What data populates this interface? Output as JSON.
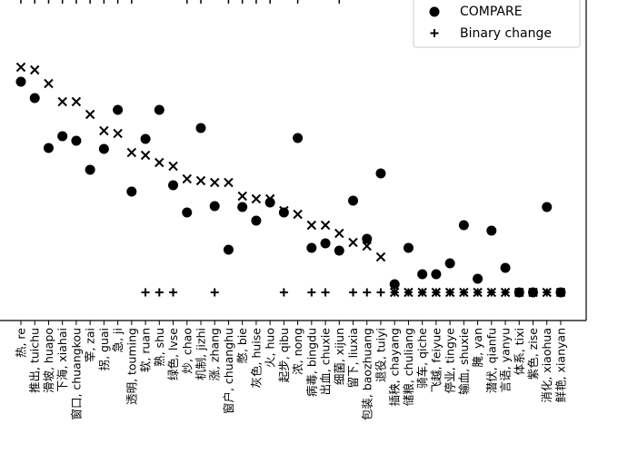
{
  "chart_data": {
    "type": "scatter",
    "title": "",
    "xlabel": "",
    "ylabel": "",
    "ylim": [
      0,
      2.6
    ],
    "grid": false,
    "legend": {
      "placement": "top-right",
      "entries": [
        {
          "label": "COMPARE",
          "marker": "dot"
        },
        {
          "label": "Binary change",
          "marker": "plus"
        }
      ]
    },
    "categories": [
      "热, re",
      "推出, tuichu",
      "滑坡, huapo",
      "下海, xiahai",
      "窗口, chuangkou",
      "宰, zai",
      "拐, guai",
      "急, ji",
      "透明, touming",
      "软, ruan",
      "熟, shu",
      "绿色, lvse",
      "炒, chao",
      "机制, jizhi",
      "涨, zhang",
      "窗户, chuanghu",
      "憋, bie",
      "灰色, huise",
      "火, huo",
      "起步, qibu",
      "浓, nong",
      "病毒, bingdu",
      "出血, chuxie",
      "细菌, xijun",
      "留下, liuxia",
      "包装, baozhuang",
      "退役, tuiyi",
      "插秧, chayang",
      "储粮, chuliang",
      "骑车, qiche",
      "飞越, feiyue",
      "停业, tingye",
      "输血, shuxie",
      "腌, yan",
      "潜伏, qianfu",
      "言语, yanyu",
      "体系, tixi",
      "紫色, zise",
      "消化, xiaohua",
      "鲜艳, xianyan"
    ],
    "series": [
      {
        "name": "COMPARE",
        "marker": "dot",
        "values": [
          2.32,
          2.14,
          1.59,
          1.72,
          1.67,
          1.35,
          1.58,
          2.01,
          1.11,
          1.69,
          2.01,
          1.18,
          0.88,
          1.81,
          0.95,
          0.47,
          0.94,
          0.79,
          0.99,
          0.88,
          1.7,
          0.49,
          0.54,
          0.46,
          1.01,
          0.59,
          1.31,
          0.09,
          0.49,
          0.2,
          0.2,
          0.32,
          0.74,
          0.15,
          0.68,
          0.27,
          0,
          0,
          0.94,
          0
        ]
      },
      {
        "name": "",
        "marker": "x",
        "values": [
          2.48,
          2.45,
          2.3,
          2.1,
          2.1,
          1.96,
          1.78,
          1.75,
          1.54,
          1.51,
          1.43,
          1.39,
          1.25,
          1.23,
          1.21,
          1.21,
          1.06,
          1.03,
          1.03,
          0.9,
          0.86,
          0.74,
          0.74,
          0.65,
          0.55,
          0.51,
          0.39,
          0,
          0,
          0,
          0,
          0,
          0,
          0,
          0,
          0,
          0,
          0,
          0,
          0
        ]
      },
      {
        "name": "Binary change",
        "marker": "plus",
        "values": [
          null,
          null,
          null,
          null,
          null,
          null,
          null,
          null,
          null,
          0,
          0,
          0,
          null,
          null,
          0,
          null,
          null,
          null,
          null,
          0,
          null,
          0,
          0,
          null,
          0,
          0,
          0,
          0,
          0,
          0,
          0,
          0,
          0,
          0,
          0,
          0,
          0,
          0,
          0,
          0
        ]
      }
    ],
    "upper_panel_tick_indices": [
      0,
      1,
      2,
      3,
      4,
      5,
      6,
      7,
      8,
      12,
      13,
      15,
      16,
      17,
      18,
      20,
      23
    ]
  }
}
